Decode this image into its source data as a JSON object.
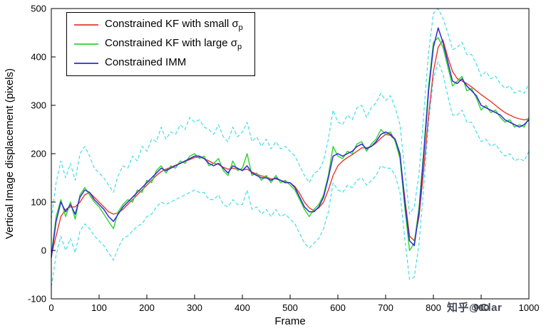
{
  "figure": {
    "xlabel": "Frame",
    "ylabel": "Vertical Image displacement (pixels)",
    "watermark": "知乎@Clar",
    "background": "#ffffff",
    "axis_color": "#000000"
  },
  "axes": {
    "xlim": [
      0,
      1000
    ],
    "ylim": [
      -100,
      500
    ],
    "x_ticks": [
      0,
      100,
      200,
      300,
      400,
      500,
      600,
      700,
      800,
      900,
      1000
    ],
    "y_ticks": [
      -100,
      0,
      100,
      200,
      300,
      400,
      500
    ]
  },
  "legend": {
    "entries": [
      {
        "label": "Constrained KF with small ",
        "symbol": "σ",
        "sub": "p",
        "color": "#e8392b"
      },
      {
        "label": "Constrained KF with large ",
        "symbol": "σ",
        "sub": "p",
        "color": "#2ed32e"
      },
      {
        "label": "Constrained IMM",
        "symbol": "",
        "sub": "",
        "color": "#2b2bd5"
      }
    ]
  },
  "chart_data": {
    "type": "line",
    "title": "",
    "xlabel": "Frame",
    "ylabel": "Vertical Image displacement (pixels)",
    "xlim": [
      0,
      1000
    ],
    "ylim": [
      -100,
      500
    ],
    "grid": false,
    "legend_position": "top-left",
    "x": [
      0,
      10,
      20,
      30,
      40,
      50,
      60,
      70,
      80,
      90,
      100,
      110,
      120,
      130,
      140,
      150,
      160,
      170,
      180,
      190,
      200,
      210,
      220,
      230,
      240,
      250,
      260,
      270,
      280,
      290,
      300,
      310,
      320,
      330,
      340,
      350,
      360,
      370,
      380,
      390,
      400,
      410,
      420,
      430,
      440,
      450,
      460,
      470,
      480,
      490,
      500,
      510,
      520,
      530,
      540,
      550,
      560,
      570,
      580,
      590,
      600,
      610,
      620,
      630,
      640,
      650,
      660,
      670,
      680,
      690,
      700,
      710,
      720,
      730,
      740,
      750,
      760,
      770,
      780,
      790,
      800,
      810,
      820,
      830,
      840,
      850,
      860,
      870,
      880,
      890,
      900,
      910,
      920,
      930,
      940,
      950,
      960,
      970,
      980,
      990,
      1000
    ],
    "series": [
      {
        "name": "Constrained KF with small σp",
        "color": "#e8392b",
        "dash": "",
        "width": 1.4,
        "values": [
          -10,
          30,
          70,
          85,
          90,
          90,
          100,
          115,
          120,
          110,
          100,
          90,
          80,
          75,
          78,
          85,
          95,
          105,
          115,
          125,
          135,
          145,
          155,
          163,
          168,
          172,
          176,
          180,
          184,
          188,
          192,
          193,
          190,
          185,
          180,
          178,
          172,
          168,
          170,
          168,
          166,
          168,
          162,
          158,
          154,
          152,
          148,
          148,
          145,
          142,
          140,
          132,
          118,
          100,
          88,
          82,
          88,
          100,
          125,
          155,
          175,
          185,
          192,
          198,
          205,
          212,
          212,
          215,
          222,
          232,
          240,
          238,
          228,
          195,
          110,
          30,
          20,
          70,
          170,
          280,
          370,
          420,
          435,
          400,
          370,
          355,
          350,
          345,
          338,
          330,
          322,
          315,
          308,
          300,
          292,
          285,
          280,
          275,
          272,
          270,
          272
        ]
      },
      {
        "name": "Constrained KF with large σp",
        "color": "#2ed32e",
        "dash": "",
        "width": 1.4,
        "values": [
          -10,
          70,
          105,
          70,
          100,
          65,
          115,
          130,
          115,
          100,
          90,
          75,
          60,
          45,
          80,
          95,
          105,
          100,
          125,
          120,
          145,
          140,
          165,
          175,
          160,
          175,
          170,
          185,
          180,
          195,
          200,
          190,
          195,
          175,
          180,
          190,
          165,
          155,
          185,
          165,
          170,
          200,
          155,
          160,
          145,
          155,
          140,
          155,
          140,
          145,
          135,
          125,
          105,
          85,
          70,
          85,
          95,
          115,
          155,
          215,
          195,
          190,
          205,
          200,
          220,
          225,
          205,
          220,
          230,
          250,
          240,
          245,
          225,
          190,
          90,
          0,
          15,
          90,
          210,
          340,
          430,
          440,
          420,
          380,
          340,
          350,
          360,
          330,
          335,
          315,
          290,
          300,
          285,
          290,
          275,
          265,
          270,
          255,
          260,
          255,
          275
        ]
      },
      {
        "name": "Constrained IMM",
        "color": "#2b2bd5",
        "dash": "",
        "width": 1.5,
        "values": [
          -15,
          60,
          100,
          80,
          95,
          75,
          110,
          125,
          120,
          105,
          95,
          85,
          70,
          60,
          75,
          90,
          100,
          110,
          120,
          130,
          140,
          150,
          160,
          170,
          165,
          170,
          175,
          180,
          185,
          190,
          195,
          195,
          190,
          180,
          175,
          180,
          170,
          160,
          175,
          170,
          165,
          175,
          160,
          155,
          150,
          150,
          145,
          150,
          145,
          140,
          140,
          130,
          110,
          90,
          80,
          80,
          90,
          110,
          150,
          195,
          200,
          195,
          200,
          205,
          215,
          220,
          210,
          215,
          225,
          240,
          245,
          240,
          230,
          200,
          100,
          20,
          10,
          80,
          200,
          330,
          420,
          460,
          430,
          390,
          350,
          345,
          355,
          340,
          330,
          320,
          300,
          295,
          290,
          285,
          280,
          270,
          265,
          260,
          255,
          260,
          270
        ]
      },
      {
        "name": "measurement-upper-bound",
        "color": "#35dce8",
        "dash": "5 3",
        "width": 1.1,
        "values": [
          65,
          140,
          185,
          150,
          180,
          145,
          200,
          215,
          195,
          170,
          160,
          150,
          135,
          120,
          155,
          175,
          170,
          195,
          185,
          215,
          205,
          230,
          225,
          255,
          230,
          245,
          240,
          260,
          250,
          275,
          265,
          270,
          255,
          250,
          240,
          260,
          235,
          225,
          255,
          235,
          245,
          265,
          225,
          235,
          215,
          230,
          210,
          225,
          210,
          215,
          205,
          195,
          175,
          155,
          140,
          160,
          165,
          185,
          230,
          290,
          265,
          260,
          280,
          270,
          295,
          300,
          275,
          295,
          305,
          325,
          310,
          320,
          295,
          260,
          165,
          75,
          90,
          160,
          285,
          410,
          490,
          500,
          480,
          450,
          415,
          420,
          430,
          405,
          405,
          385,
          360,
          370,
          355,
          360,
          345,
          335,
          340,
          325,
          330,
          325,
          345
        ]
      },
      {
        "name": "measurement-lower-bound",
        "color": "#35dce8",
        "dash": "5 3",
        "width": 1.1,
        "values": [
          -75,
          -10,
          30,
          0,
          25,
          -5,
          40,
          55,
          45,
          30,
          20,
          10,
          -5,
          -20,
          5,
          25,
          30,
          40,
          50,
          55,
          70,
          75,
          90,
          100,
          95,
          100,
          105,
          110,
          115,
          120,
          125,
          120,
          120,
          105,
          105,
          115,
          95,
          90,
          105,
          95,
          95,
          125,
          85,
          90,
          75,
          85,
          70,
          85,
          70,
          75,
          65,
          55,
          35,
          15,
          5,
          15,
          25,
          45,
          80,
          140,
          125,
          120,
          135,
          130,
          145,
          150,
          135,
          145,
          155,
          175,
          170,
          170,
          155,
          120,
          25,
          -60,
          -55,
          15,
          135,
          265,
          355,
          390,
          365,
          320,
          280,
          280,
          290,
          265,
          265,
          245,
          225,
          230,
          215,
          220,
          205,
          195,
          200,
          185,
          190,
          185,
          205
        ]
      }
    ]
  }
}
